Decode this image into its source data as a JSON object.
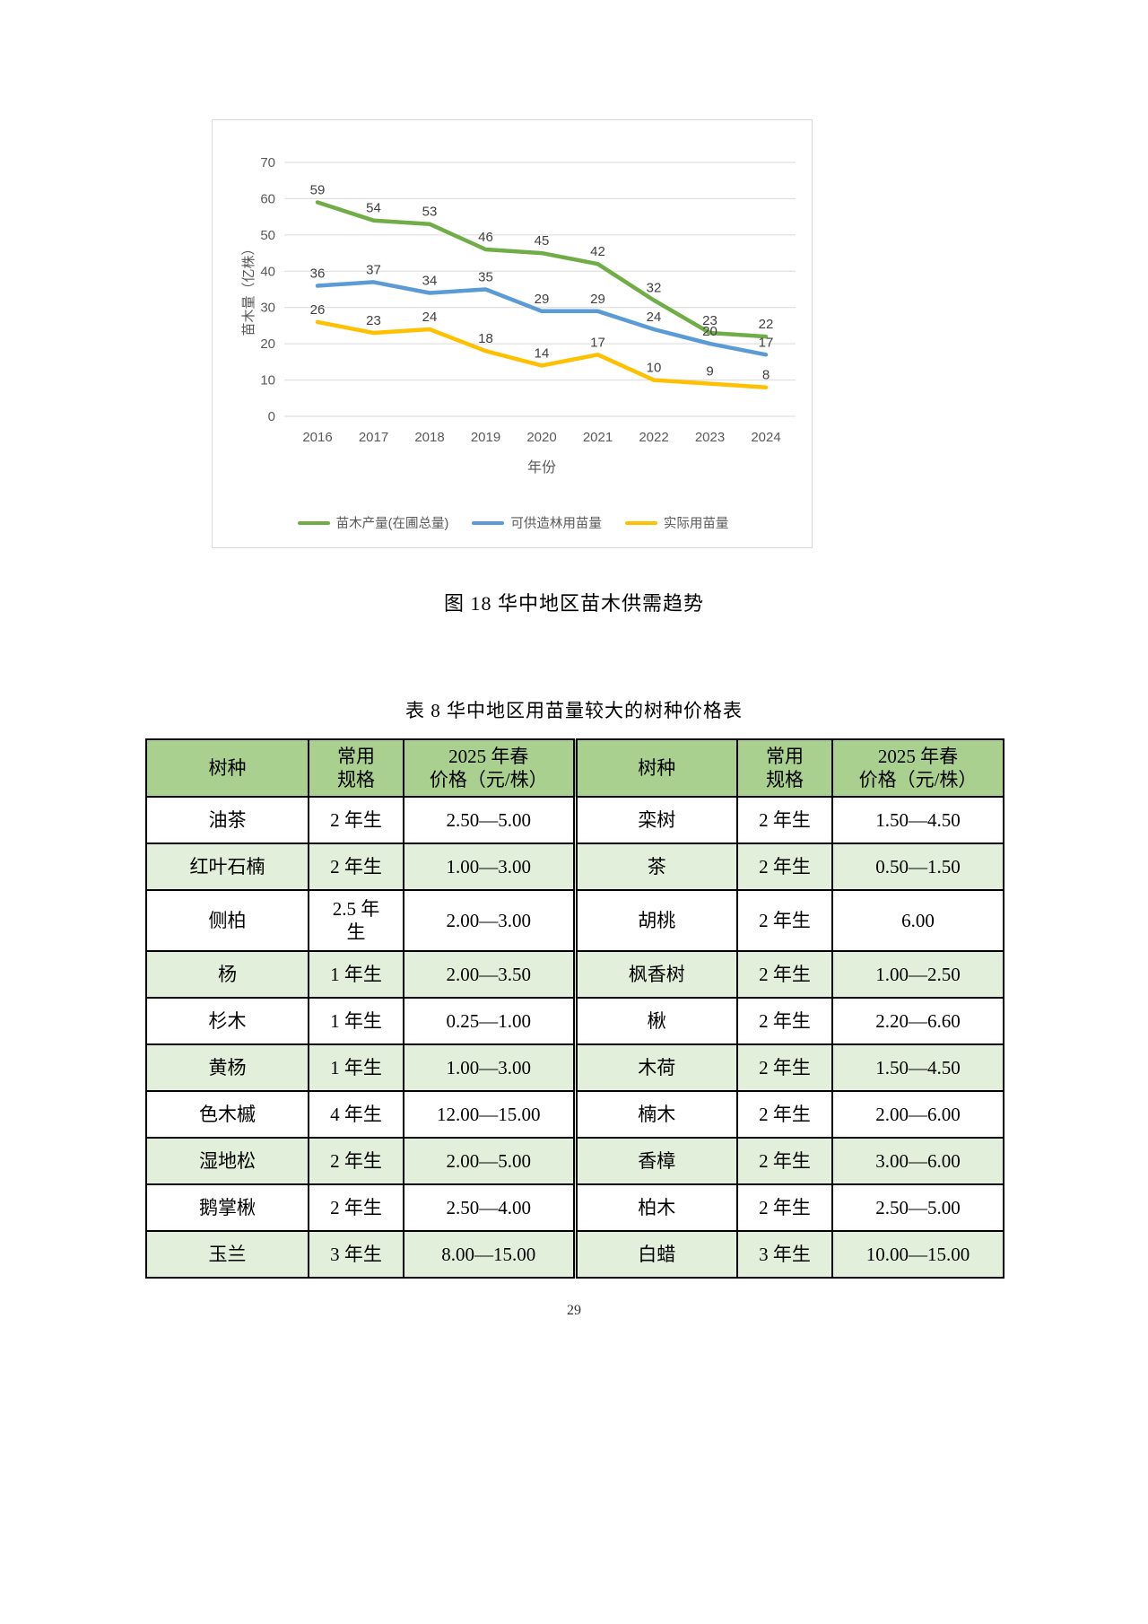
{
  "page": {
    "number": "29"
  },
  "figure": {
    "caption": "图 18 华中地区苗木供需趋势"
  },
  "chart_data": {
    "type": "line",
    "x": [
      "2016",
      "2017",
      "2018",
      "2019",
      "2020",
      "2021",
      "2022",
      "2023",
      "2024"
    ],
    "xlabel": "年份",
    "ylabel": "苗木量（亿株）",
    "ylim": [
      0,
      70
    ],
    "ytick_step": 10,
    "grid": true,
    "legend_position": "bottom",
    "axis_color": "#595959",
    "grid_color": "#d9d9d9",
    "label_color": "#404040",
    "series": [
      {
        "name": "苗木产量(在圃总量)",
        "color": "#70ad47",
        "values": [
          59,
          54,
          53,
          46,
          45,
          42,
          32,
          23,
          22
        ]
      },
      {
        "name": "可供造林用苗量",
        "color": "#5b9bd5",
        "values": [
          36,
          37,
          34,
          35,
          29,
          29,
          24,
          20,
          17
        ]
      },
      {
        "name": "实际用苗量",
        "color": "#ffc000",
        "values": [
          26,
          23,
          24,
          18,
          14,
          17,
          10,
          9,
          8
        ]
      }
    ]
  },
  "table": {
    "title": "表 8 华中地区用苗量较大的树种价格表",
    "header": [
      "树种",
      "常用\n规格",
      "2025 年春\n价格（元/株）",
      "树种",
      "常用\n规格",
      "2025 年春\n价格（元/株）"
    ],
    "rows": [
      [
        "油茶",
        "2 年生",
        "2.50—5.00",
        "栾树",
        "2 年生",
        "1.50—4.50"
      ],
      [
        "红叶石楠",
        "2 年生",
        "1.00—3.00",
        "茶",
        "2 年生",
        "0.50—1.50"
      ],
      [
        "侧柏",
        "2.5 年\n生",
        "2.00—3.00",
        "胡桃",
        "2 年生",
        "6.00"
      ],
      [
        "杨",
        "1 年生",
        "2.00—3.50",
        "枫香树",
        "2 年生",
        "1.00—2.50"
      ],
      [
        "杉木",
        "1 年生",
        "0.25—1.00",
        "楸",
        "2 年生",
        "2.20—6.60"
      ],
      [
        "黄杨",
        "1 年生",
        "1.00—3.00",
        "木荷",
        "2 年生",
        "1.50—4.50"
      ],
      [
        "色木槭",
        "4 年生",
        "12.00—15.00",
        "楠木",
        "2 年生",
        "2.00—6.00"
      ],
      [
        "湿地松",
        "2 年生",
        "2.00—5.00",
        "香樟",
        "2 年生",
        "3.00—6.00"
      ],
      [
        "鹅掌楸",
        "2 年生",
        "2.50—4.00",
        "柏木",
        "2 年生",
        "2.50—5.00"
      ],
      [
        "玉兰",
        "3 年生",
        "8.00—15.00",
        "白蜡",
        "3 年生",
        "10.00—15.00"
      ]
    ],
    "colors": {
      "header_bg": "#a9d08e",
      "row_alt_bg": "#e2efda",
      "row_bg": "#ffffff",
      "border": "#000000"
    }
  }
}
